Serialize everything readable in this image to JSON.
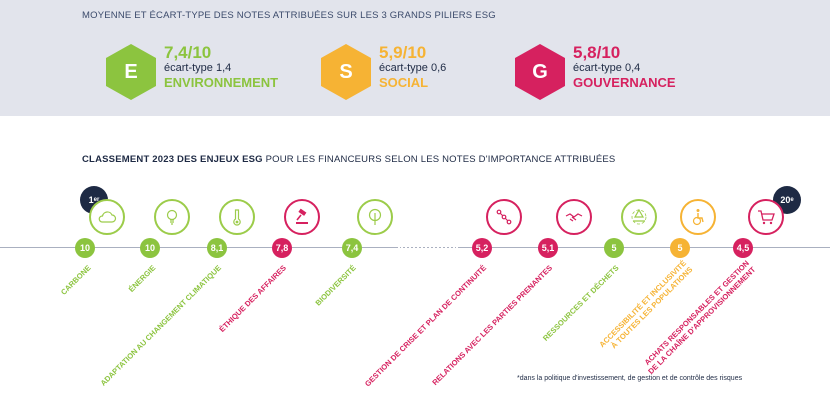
{
  "header": {
    "title": "MOYENNE ET ÉCART-TYPE DES NOTES ATTRIBUÉES SUR LES 3 GRANDS PILIERS ESG"
  },
  "pillars": [
    {
      "letter": "E",
      "score": "7,4/10",
      "sd": "écart-type 1,4",
      "name": "ENVIRONNEMENT",
      "color": "#8cc43f"
    },
    {
      "letter": "S",
      "score": "5,9/10",
      "sd": "écart-type 0,6",
      "name": "SOCIAL",
      "color": "#f6b334"
    },
    {
      "letter": "G",
      "score": "5,8/10",
      "sd": "écart-type 0,4",
      "name": "GOUVERNANCE",
      "color": "#d6215f"
    }
  ],
  "ranking": {
    "title_bold": "CLASSEMENT 2023 DES ENJEUX ESG",
    "title_rest": " POUR LES FINANCEURS SELON LES NOTES D'IMPORTANCE ATTRIBUÉES",
    "first": "1",
    "first_sup": "er",
    "last": "20",
    "last_sup": "e",
    "items": [
      {
        "score": "10",
        "label": "CARBONE",
        "icon": "cloud-icon",
        "color": "#8cc43f"
      },
      {
        "score": "10",
        "label": "ÉNERGIE",
        "icon": "lightbulb-icon",
        "color": "#8cc43f"
      },
      {
        "score": "8,1",
        "label": "ADAPTATION AU CHANGEMENT CLIMATIQUE",
        "icon": "thermometer-icon",
        "color": "#8cc43f"
      },
      {
        "score": "7,8",
        "label": "ÉTHIQUE DES AFFAIRES",
        "icon": "gavel-icon",
        "color": "#d6215f"
      },
      {
        "score": "7,4",
        "label": "BIODIVERSITÉ",
        "icon": "tree-icon",
        "color": "#8cc43f"
      },
      {
        "score": "5,2",
        "label": "GESTION DE CRISE ET PLAN DE CONTINUITÉ",
        "icon": "flow-icon",
        "color": "#d6215f"
      },
      {
        "score": "5,1",
        "label": "RELATIONS AVEC LES PARTIES PRENANTES",
        "icon": "handshake-icon",
        "color": "#d6215f"
      },
      {
        "score": "5",
        "label": "RESSOURCES ET DÉCHETS",
        "icon": "recycle-icon",
        "color": "#8cc43f"
      },
      {
        "score": "5",
        "label1": "ACCESSIBILITÉ ET INCLUSIVITÉ",
        "label2": "À TOUTES LES POPULATIONS",
        "icon": "wheelchair-icon",
        "color": "#f6b334"
      },
      {
        "score": "4,5",
        "label1": "ACHATS RESPONSABLES ET GESTION",
        "label2": "DE LA CHAÎNE D'APPROVISIONNEMENT",
        "icon": "cart-icon",
        "color": "#d6215f"
      }
    ]
  },
  "footnote": "*dans la politique d'investissement, de gestion et de contrôle des risques"
}
